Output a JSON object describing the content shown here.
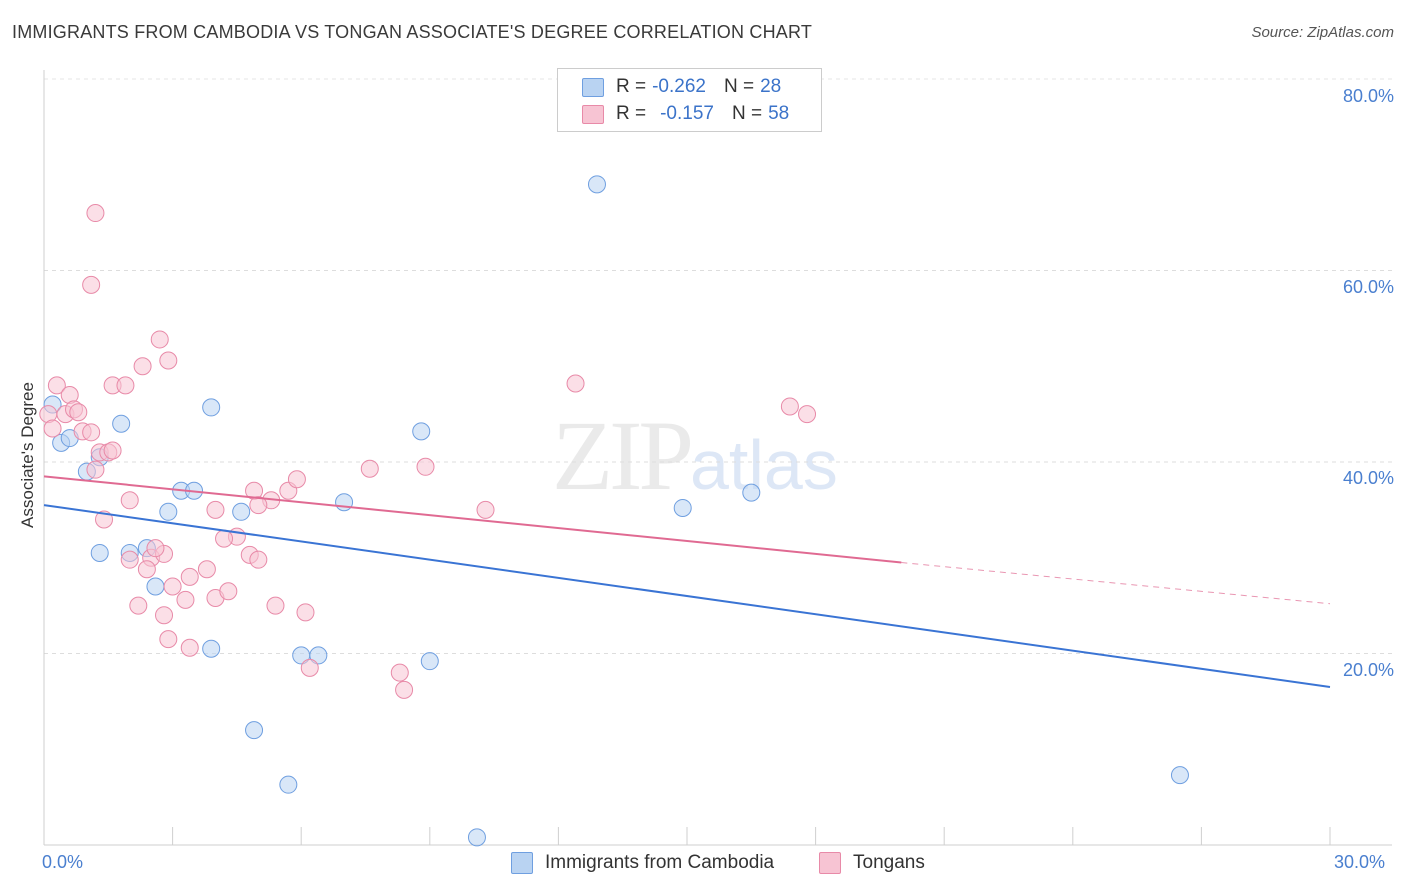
{
  "title": "IMMIGRANTS FROM CAMBODIA VS TONGAN ASSOCIATE'S DEGREE CORRELATION CHART",
  "source": "Source: ZipAtlas.com",
  "watermark": {
    "zip": "ZIP",
    "atlas": "atlas"
  },
  "legend": {
    "rows": [
      {
        "r_label": "R =",
        "r_value": "-0.262",
        "n_label": "N =",
        "n_value": "28"
      },
      {
        "r_label": "R =",
        "r_value": "-0.157",
        "n_label": "N =",
        "n_value": "58"
      }
    ]
  },
  "bottom_legend": [
    "Immigrants from Cambodia",
    "Tongans"
  ],
  "colors": {
    "blue_fill": "#b9d3f2",
    "blue_stroke": "#6f9fe0",
    "blue_line": "#3a74d4",
    "pink_fill": "#f7c4d3",
    "pink_stroke": "#e88aa8",
    "pink_line": "#e06a92",
    "tick_text": "#4a7fcf"
  },
  "chart_data": {
    "type": "scatter",
    "title": "IMMIGRANTS FROM CAMBODIA VS TONGAN ASSOCIATE'S DEGREE CORRELATION CHART",
    "xlabel": "",
    "ylabel": "Associate's Degree",
    "xlim": [
      0,
      30
    ],
    "ylim": [
      0,
      80
    ],
    "x_tick_labels": [
      "0.0%",
      "30.0%"
    ],
    "y_ticks": [
      20,
      40,
      60,
      80
    ],
    "y_tick_labels": [
      "20.0%",
      "40.0%",
      "60.0%",
      "80.0%"
    ],
    "grid": true,
    "series": [
      {
        "name": "Immigrants from Cambodia",
        "color": "blue",
        "points": [
          [
            0.2,
            46.0
          ],
          [
            0.4,
            42.0
          ],
          [
            1.0,
            39.0
          ],
          [
            1.3,
            40.5
          ],
          [
            1.8,
            44.0
          ],
          [
            3.9,
            45.7
          ],
          [
            3.2,
            37.0
          ],
          [
            3.5,
            37.0
          ],
          [
            2.9,
            34.8
          ],
          [
            4.6,
            34.8
          ],
          [
            1.3,
            30.5
          ],
          [
            2.0,
            30.5
          ],
          [
            2.4,
            31.0
          ],
          [
            2.6,
            27.0
          ],
          [
            7.0,
            35.8
          ],
          [
            8.8,
            43.2
          ],
          [
            3.9,
            20.5
          ],
          [
            6.0,
            19.8
          ],
          [
            6.4,
            19.8
          ],
          [
            9.0,
            19.2
          ],
          [
            4.9,
            12.0
          ],
          [
            5.7,
            6.3
          ],
          [
            10.1,
            0.8
          ],
          [
            12.9,
            69.0
          ],
          [
            14.9,
            35.2
          ],
          [
            16.5,
            36.8
          ],
          [
            26.5,
            7.3
          ],
          [
            0.6,
            42.5
          ]
        ],
        "trend": {
          "x": [
            0,
            30
          ],
          "y": [
            35.5,
            16.5
          ],
          "dashed_to": null
        }
      },
      {
        "name": "Tongans",
        "color": "pink",
        "points": [
          [
            0.1,
            45.0
          ],
          [
            0.2,
            43.5
          ],
          [
            0.3,
            48.0
          ],
          [
            0.5,
            45.0
          ],
          [
            0.6,
            47.0
          ],
          [
            0.7,
            45.5
          ],
          [
            0.8,
            45.2
          ],
          [
            0.9,
            43.2
          ],
          [
            1.1,
            43.1
          ],
          [
            1.2,
            39.2
          ],
          [
            1.3,
            41.0
          ],
          [
            1.5,
            41.0
          ],
          [
            1.6,
            48.0
          ],
          [
            1.9,
            48.0
          ],
          [
            2.0,
            36.0
          ],
          [
            1.4,
            34.0
          ],
          [
            1.2,
            66.0
          ],
          [
            1.1,
            58.5
          ],
          [
            2.3,
            50.0
          ],
          [
            2.7,
            52.8
          ],
          [
            2.9,
            50.6
          ],
          [
            2.5,
            30.0
          ],
          [
            2.8,
            30.4
          ],
          [
            2.6,
            31.0
          ],
          [
            2.0,
            29.8
          ],
          [
            2.4,
            28.8
          ],
          [
            3.0,
            27.0
          ],
          [
            3.4,
            28.0
          ],
          [
            3.8,
            28.8
          ],
          [
            3.3,
            25.6
          ],
          [
            4.0,
            25.8
          ],
          [
            4.3,
            26.5
          ],
          [
            4.5,
            32.2
          ],
          [
            4.2,
            32.0
          ],
          [
            4.8,
            30.3
          ],
          [
            5.0,
            29.8
          ],
          [
            4.9,
            37.0
          ],
          [
            5.3,
            36.0
          ],
          [
            5.7,
            37.0
          ],
          [
            5.9,
            38.2
          ],
          [
            5.4,
            25.0
          ],
          [
            6.1,
            24.3
          ],
          [
            6.2,
            18.5
          ],
          [
            2.2,
            25.0
          ],
          [
            2.8,
            24.0
          ],
          [
            2.9,
            21.5
          ],
          [
            3.4,
            20.6
          ],
          [
            4.0,
            35.0
          ],
          [
            5.0,
            35.5
          ],
          [
            7.6,
            39.3
          ],
          [
            8.3,
            18.0
          ],
          [
            8.4,
            16.2
          ],
          [
            8.9,
            39.5
          ],
          [
            10.3,
            35.0
          ],
          [
            12.4,
            48.2
          ],
          [
            17.4,
            45.8
          ],
          [
            17.8,
            45.0
          ],
          [
            1.6,
            41.2
          ]
        ],
        "trend": {
          "x": [
            0,
            20
          ],
          "y": [
            38.5,
            29.5
          ],
          "dashed_to": {
            "x": 30,
            "y": 25.2
          }
        }
      }
    ]
  }
}
